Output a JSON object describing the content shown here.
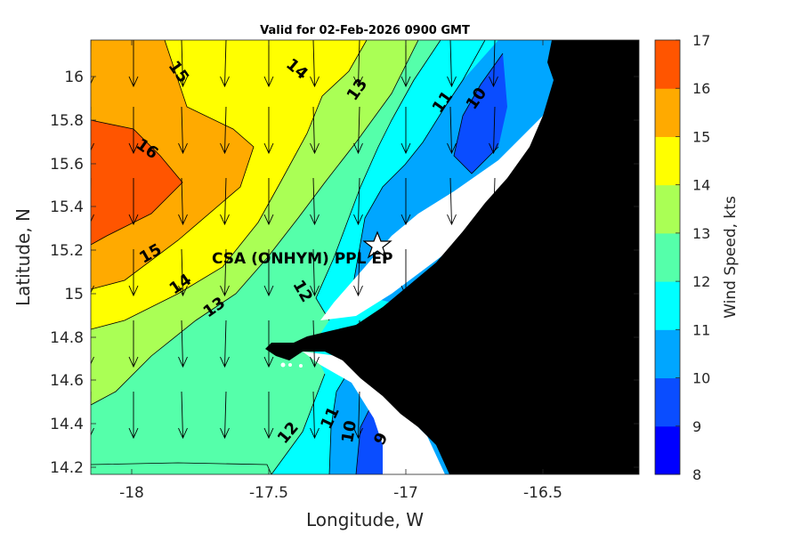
{
  "title": "Valid for 02-Feb-2026 0900 GMT",
  "site_label": "CSA (ONHYM) PPL EP",
  "axes": {
    "xlabel": "Longitude, W",
    "ylabel": "Latitude, N",
    "x_ticks": [
      "-18",
      "-17.5",
      "-17",
      "-16.5"
    ],
    "y_ticks": [
      "16",
      "15.8",
      "15.6",
      "15.4",
      "15.2",
      "15",
      "14.8",
      "14.6",
      "14.4",
      "14.2"
    ]
  },
  "colorbar": {
    "label": "Wind Speed, kts",
    "ticks": [
      "8",
      "9",
      "10",
      "11",
      "12",
      "13",
      "14",
      "15",
      "16",
      "17"
    ],
    "colors": [
      "#0000ff",
      "#0a4dff",
      "#00a6ff",
      "#00ffff",
      "#55ffaa",
      "#aaff55",
      "#ffff00",
      "#ffaa00",
      "#ff5500"
    ]
  },
  "contour_labels": [
    {
      "text": "15"
    },
    {
      "text": "14"
    },
    {
      "text": "13"
    },
    {
      "text": "11"
    },
    {
      "text": "10"
    },
    {
      "text": "16"
    },
    {
      "text": "15"
    },
    {
      "text": "14"
    },
    {
      "text": "13"
    },
    {
      "text": "12"
    },
    {
      "text": "12"
    },
    {
      "text": "11"
    },
    {
      "text": "10"
    },
    {
      "text": "9"
    }
  ],
  "chart_data": {
    "type": "heatmap",
    "title": "Valid for 02-Feb-2026 0900 GMT",
    "xlabel": "Longitude, W",
    "ylabel": "Latitude, N",
    "xlim": [
      -18.2,
      -16.2
    ],
    "ylim": [
      14.17,
      16.17
    ],
    "colorbar_label": "Wind Speed, kts",
    "colorbar_range": [
      8,
      17
    ],
    "site": {
      "name": "CSA (ONHYM) PPL EP",
      "lon": -17.12,
      "lat": 15.22
    },
    "wind_direction": "from north (arrows pointing south)"
  }
}
